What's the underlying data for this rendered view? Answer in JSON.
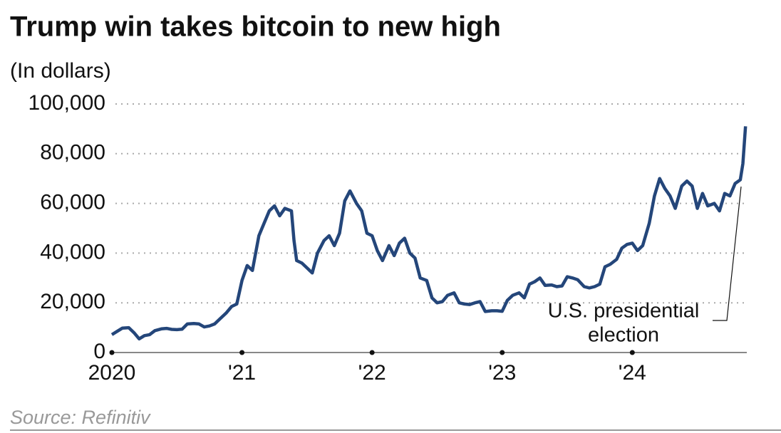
{
  "chart_data": {
    "type": "line",
    "title": "Trump win takes bitcoin to new high",
    "subtitle": "(In dollars)",
    "source": "Source: Refinitiv",
    "annotation": [
      "U.S. presidential",
      "election"
    ],
    "xlim": [
      2020,
      2024.88
    ],
    "xticks": [
      {
        "value": 2020,
        "label": "2020"
      },
      {
        "value": 2021,
        "label": "'21"
      },
      {
        "value": 2022,
        "label": "'22"
      },
      {
        "value": 2023,
        "label": "'23"
      },
      {
        "value": 2024,
        "label": "'24"
      }
    ],
    "ylim": [
      0,
      100000
    ],
    "yticks": [
      0,
      {
        "value": 20000,
        "label": "20,000"
      },
      {
        "value": 40000,
        "label": "40,000"
      },
      {
        "value": 60000,
        "label": "60,000"
      },
      {
        "value": 80000,
        "label": "80,000"
      },
      {
        "value": 100000,
        "label": "100,000"
      }
    ],
    "grid": true,
    "series": [
      {
        "color": "#24467a",
        "x": [
          2020.0,
          2020.04,
          2020.08,
          2020.13,
          2020.17,
          2020.21,
          2020.25,
          2020.29,
          2020.33,
          2020.38,
          2020.42,
          2020.46,
          2020.5,
          2020.54,
          2020.58,
          2020.63,
          2020.67,
          2020.71,
          2020.75,
          2020.79,
          2020.83,
          2020.88,
          2020.92,
          2020.96,
          2021.0,
          2021.04,
          2021.08,
          2021.13,
          2021.17,
          2021.21,
          2021.25,
          2021.29,
          2021.33,
          2021.38,
          2021.4,
          2021.42,
          2021.46,
          2021.5,
          2021.54,
          2021.58,
          2021.63,
          2021.67,
          2021.71,
          2021.75,
          2021.79,
          2021.83,
          2021.88,
          2021.92,
          2021.96,
          2022.0,
          2022.04,
          2022.08,
          2022.13,
          2022.17,
          2022.21,
          2022.25,
          2022.29,
          2022.33,
          2022.37,
          2022.42,
          2022.46,
          2022.5,
          2022.54,
          2022.58,
          2022.63,
          2022.67,
          2022.71,
          2022.75,
          2022.79,
          2022.83,
          2022.87,
          2022.92,
          2022.96,
          2023.0,
          2023.04,
          2023.08,
          2023.13,
          2023.17,
          2023.21,
          2023.25,
          2023.29,
          2023.33,
          2023.38,
          2023.42,
          2023.46,
          2023.5,
          2023.54,
          2023.58,
          2023.63,
          2023.67,
          2023.71,
          2023.75,
          2023.79,
          2023.83,
          2023.88,
          2023.92,
          2023.96,
          2024.0,
          2024.04,
          2024.08,
          2024.13,
          2024.17,
          2024.21,
          2024.25,
          2024.29,
          2024.33,
          2024.38,
          2024.42,
          2024.46,
          2024.5,
          2024.54,
          2024.58,
          2024.63,
          2024.67,
          2024.71,
          2024.75,
          2024.79,
          2024.83,
          2024.85,
          2024.87
        ],
        "values": [
          7200,
          8500,
          9800,
          10000,
          8000,
          5500,
          6800,
          7200,
          8800,
          9500,
          9700,
          9300,
          9200,
          9400,
          11500,
          11700,
          11500,
          10300,
          10700,
          11500,
          13500,
          16000,
          18500,
          19500,
          29000,
          35000,
          33000,
          47000,
          52000,
          57000,
          59000,
          55000,
          58000,
          57000,
          45000,
          37000,
          36000,
          34000,
          32000,
          40000,
          45000,
          47000,
          43000,
          48000,
          61000,
          65000,
          60000,
          57000,
          48000,
          47000,
          41000,
          37000,
          43000,
          39000,
          44000,
          46000,
          40000,
          38000,
          30000,
          29000,
          22000,
          20000,
          20500,
          23000,
          24000,
          20000,
          19500,
          19300,
          20000,
          20500,
          16500,
          16800,
          16800,
          16600,
          21000,
          23000,
          24000,
          22000,
          27500,
          28500,
          30000,
          27000,
          27200,
          26500,
          26800,
          30500,
          30000,
          29300,
          26500,
          26000,
          26500,
          27500,
          34500,
          35500,
          37500,
          42000,
          43500,
          44000,
          41000,
          43000,
          52000,
          63000,
          70000,
          66000,
          63000,
          58000,
          67000,
          69000,
          67000,
          58000,
          64000,
          59000,
          60000,
          57000,
          64000,
          63000,
          68000,
          69500,
          76000,
          91000
        ]
      }
    ]
  }
}
